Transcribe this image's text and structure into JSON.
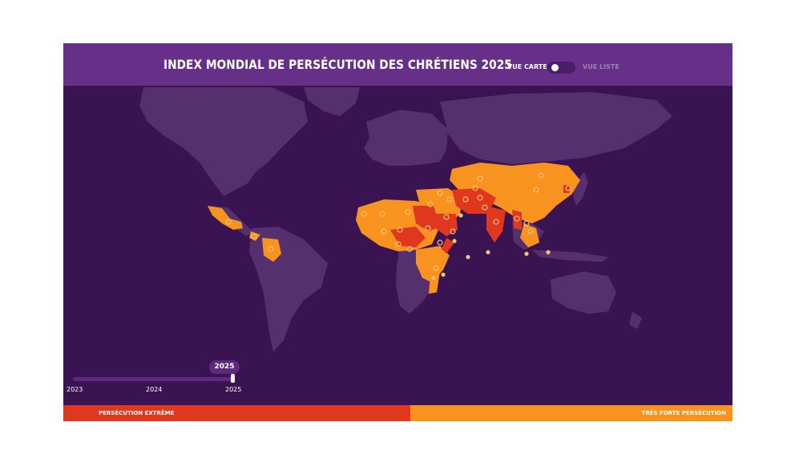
{
  "header": {
    "title": "INDEX MONDIAL DE PERSÉCUTION DES CHRÉTIENS 2025",
    "view_map_label": "VUE CARTE",
    "view_list_label": "VUE LISTE"
  },
  "timeline": {
    "selected_year": "2025",
    "ticks": [
      "2023",
      "2024",
      "2025"
    ],
    "position": 1.0
  },
  "legend": {
    "extreme_label": "PERSÉCUTION EXTRÊME",
    "very_high_label": "TRÈS FORTE PERSÉCUTION"
  },
  "colors": {
    "background": "#3a1452",
    "header": "#673088",
    "land": "#55306f",
    "extreme": "#e0371f",
    "very_high": "#f7931e",
    "marker": "#f6c27a"
  }
}
